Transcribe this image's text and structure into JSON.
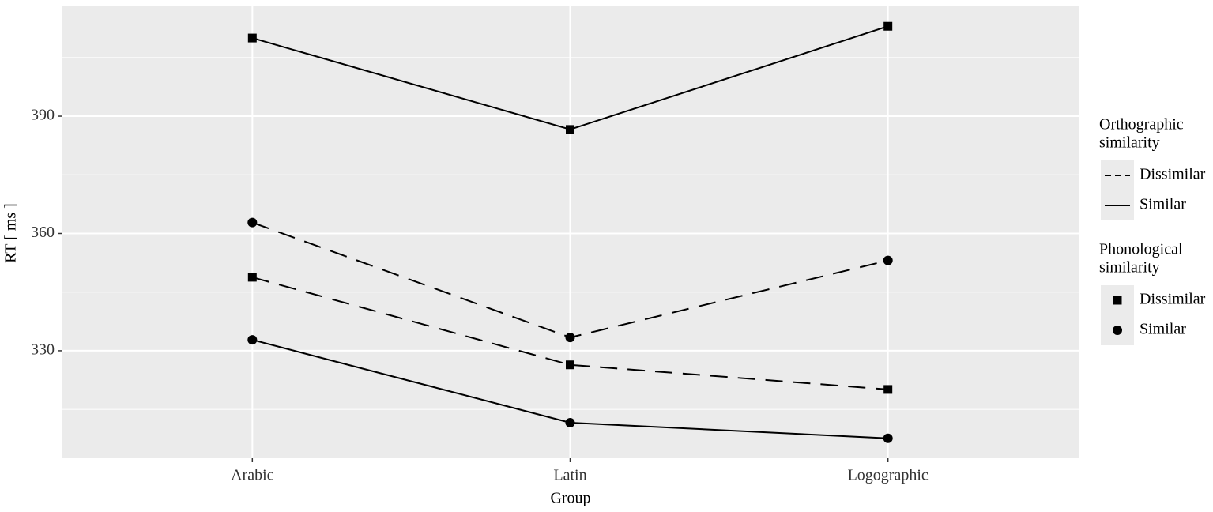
{
  "chart_data": {
    "type": "line",
    "x_label": "Group",
    "y_label": "RT [ ms ]",
    "categories": [
      "Arabic",
      "Latin",
      "Logographic"
    ],
    "series": [
      {
        "linetype": "solid",
        "shape": "square",
        "color": "#000000",
        "values": [
          410,
          386.6,
          413
        ]
      },
      {
        "linetype": "dashed",
        "shape": "circle",
        "color": "#000000",
        "values": [
          362.8,
          333.4,
          353.1
        ]
      },
      {
        "linetype": "dashed",
        "shape": "square",
        "color": "#000000",
        "values": [
          348.8,
          326.4,
          320.1
        ]
      },
      {
        "linetype": "solid",
        "shape": "circle",
        "color": "#000000",
        "values": [
          332.8,
          311.6,
          307.6
        ]
      }
    ],
    "ylim": [
      302.5,
      418.1
    ],
    "yticks": [
      330,
      360,
      390
    ],
    "minor_yticks": [
      315,
      345,
      375,
      405
    ],
    "grid": true,
    "legend": {
      "linetype": {
        "title_lines": [
          "Orthographic",
          "similarity"
        ],
        "entries": [
          {
            "label": "Dissimilar",
            "linetype": "dashed"
          },
          {
            "label": "Similar",
            "linetype": "solid"
          }
        ]
      },
      "shape": {
        "title_lines": [
          "Phonological",
          "similarity"
        ],
        "entries": [
          {
            "label": "Dissimilar",
            "shape": "square"
          },
          {
            "label": "Similar",
            "shape": "circle"
          }
        ]
      }
    }
  }
}
